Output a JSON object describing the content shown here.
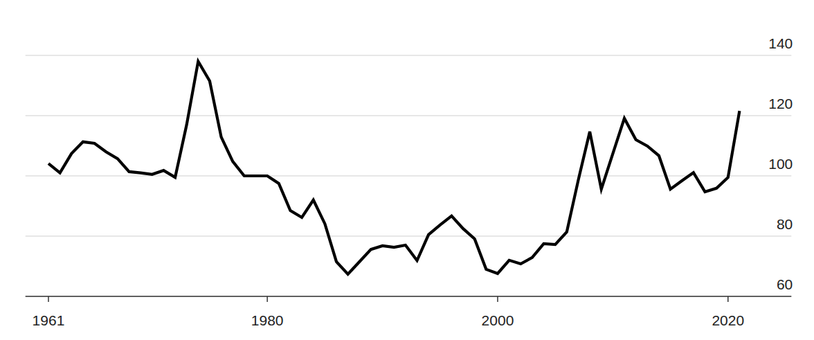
{
  "chart_data": {
    "type": "line",
    "x": [
      1961,
      1962,
      1963,
      1964,
      1965,
      1966,
      1967,
      1968,
      1969,
      1970,
      1971,
      1972,
      1973,
      1974,
      1975,
      1976,
      1977,
      1978,
      1979,
      1980,
      1981,
      1982,
      1983,
      1984,
      1985,
      1986,
      1987,
      1988,
      1989,
      1990,
      1991,
      1992,
      1993,
      1994,
      1995,
      1996,
      1997,
      1998,
      1999,
      2000,
      2001,
      2002,
      2003,
      2004,
      2005,
      2006,
      2007,
      2008,
      2009,
      2010,
      2011,
      2012,
      2013,
      2014,
      2015,
      2016,
      2017,
      2018,
      2019,
      2020,
      2021
    ],
    "values": [
      104.1,
      101,
      107.4,
      111.3,
      110.8,
      108,
      105.7,
      101.4,
      101,
      100.5,
      101.8,
      99.5,
      117,
      138,
      131.5,
      112.9,
      104.8,
      100,
      100,
      100,
      97.5,
      88.5,
      86.2,
      92,
      84.1,
      71.5,
      67.4,
      71.5,
      75.6,
      76.8,
      76.3,
      77,
      71.9,
      80.5,
      83.7,
      86.7,
      82.5,
      79.1,
      69,
      67.6,
      72,
      70.8,
      72.9,
      77.5,
      77.2,
      81.4,
      98.6,
      114.7,
      95.6,
      107.4,
      119.1,
      112,
      109.9,
      106.7,
      95.6,
      98.4,
      101.1,
      94.7,
      95.9,
      99.5,
      121.6
    ],
    "color": "#000000",
    "xlim": [
      1959,
      2025.5
    ],
    "xticks": [
      1961,
      1980,
      2000,
      2020
    ],
    "ylim": [
      60,
      140
    ],
    "yticks": [
      60,
      80,
      100,
      120,
      140
    ],
    "grid": true
  }
}
